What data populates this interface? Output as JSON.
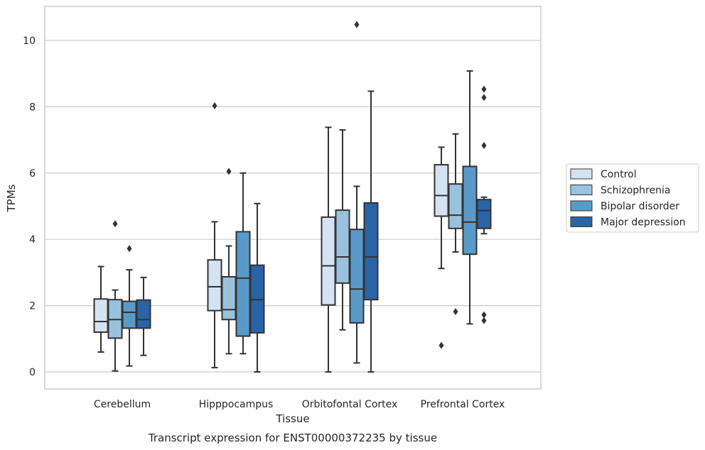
{
  "caption": "Transcript expression for ENST00000372235 by tissue",
  "chart_data": {
    "type": "boxplot",
    "title": "",
    "xlabel": "Tissue",
    "ylabel": "TPMs",
    "ylim": [
      -0.5,
      11.0
    ],
    "yticks": [
      0,
      2,
      4,
      6,
      8,
      10
    ],
    "grid": "horizontal",
    "legend_position": "right",
    "categories": [
      "Cerebellum",
      "Hipppocampus",
      "Orbitofontal Cortex",
      "Prefrontal Cortex"
    ],
    "series": [
      {
        "name": "Control",
        "color": "#d4e3f2",
        "boxes": [
          {
            "whislo": 0.6,
            "q1": 1.2,
            "med": 1.52,
            "q3": 2.2,
            "whishi": 3.18,
            "fliers": []
          },
          {
            "whislo": 0.13,
            "q1": 1.85,
            "med": 2.57,
            "q3": 3.38,
            "whishi": 4.53,
            "fliers": [
              8.03
            ]
          },
          {
            "whislo": 0.0,
            "q1": 2.02,
            "med": 3.2,
            "q3": 4.67,
            "whishi": 7.38,
            "fliers": []
          },
          {
            "whislo": 3.12,
            "q1": 4.7,
            "med": 5.32,
            "q3": 6.25,
            "whishi": 6.78,
            "fliers": [
              0.8
            ]
          }
        ]
      },
      {
        "name": "Schizophrenia",
        "color": "#9ac2dd",
        "boxes": [
          {
            "whislo": 0.03,
            "q1": 1.02,
            "med": 1.58,
            "q3": 2.18,
            "whishi": 2.47,
            "fliers": [
              4.47
            ]
          },
          {
            "whislo": 0.55,
            "q1": 1.58,
            "med": 1.88,
            "q3": 2.87,
            "whishi": 3.8,
            "fliers": [
              6.05
            ]
          },
          {
            "whislo": 1.27,
            "q1": 2.68,
            "med": 3.47,
            "q3": 4.88,
            "whishi": 7.3,
            "fliers": []
          },
          {
            "whislo": 3.62,
            "q1": 4.33,
            "med": 4.73,
            "q3": 5.67,
            "whishi": 7.18,
            "fliers": [
              1.82
            ]
          }
        ]
      },
      {
        "name": "Bipolar disorder",
        "color": "#5a9ac8",
        "boxes": [
          {
            "whislo": 0.18,
            "q1": 1.32,
            "med": 1.8,
            "q3": 2.13,
            "whishi": 3.08,
            "fliers": [
              3.72
            ]
          },
          {
            "whislo": 0.55,
            "q1": 1.08,
            "med": 2.83,
            "q3": 4.23,
            "whishi": 6.0,
            "fliers": []
          },
          {
            "whislo": 0.27,
            "q1": 1.48,
            "med": 2.5,
            "q3": 4.3,
            "whishi": 5.6,
            "fliers": [
              10.48
            ]
          },
          {
            "whislo": 1.45,
            "q1": 3.55,
            "med": 4.52,
            "q3": 6.2,
            "whishi": 9.08,
            "fliers": []
          }
        ]
      },
      {
        "name": "Major depression",
        "color": "#2a64a6",
        "boxes": [
          {
            "whislo": 0.5,
            "q1": 1.32,
            "med": 1.58,
            "q3": 2.17,
            "whishi": 2.85,
            "fliers": []
          },
          {
            "whislo": 0.0,
            "q1": 1.18,
            "med": 2.18,
            "q3": 3.22,
            "whishi": 5.08,
            "fliers": []
          },
          {
            "whislo": 0.0,
            "q1": 2.18,
            "med": 3.47,
            "q3": 5.1,
            "whishi": 8.47,
            "fliers": []
          },
          {
            "whislo": 4.17,
            "q1": 4.33,
            "med": 4.87,
            "q3": 5.2,
            "whishi": 5.27,
            "fliers": [
              8.53,
              8.28,
              6.83,
              1.72,
              1.55
            ]
          }
        ]
      }
    ]
  }
}
